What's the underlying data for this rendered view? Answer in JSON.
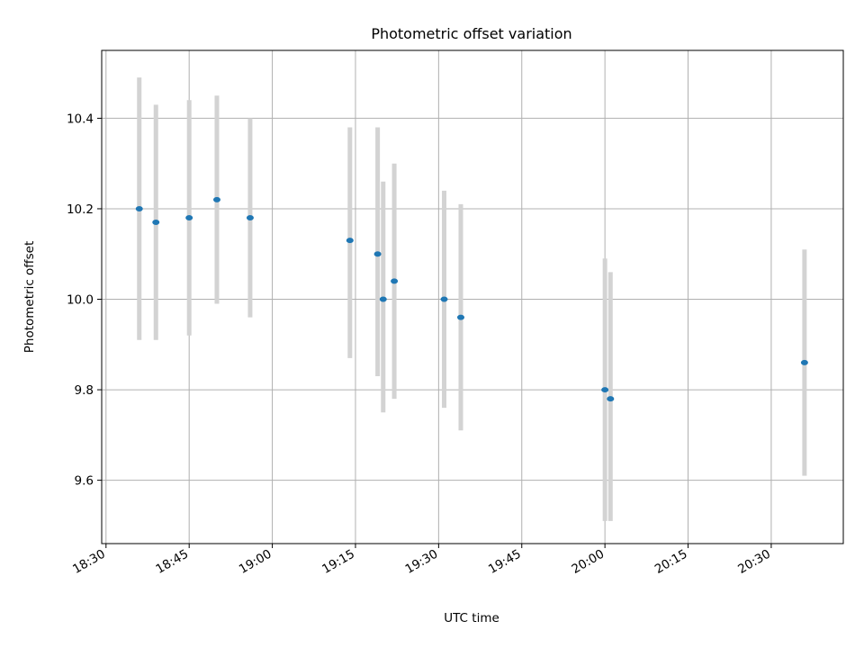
{
  "chart_data": {
    "type": "scatter",
    "title": "Photometric offset variation",
    "xlabel": "UTC time",
    "ylabel": "Photometric offset",
    "x_unit": "UTC time of day",
    "xlim": [
      "18:30",
      "20:43"
    ],
    "ylim": [
      9.46,
      10.55
    ],
    "x_ticks": [
      "18:30",
      "18:45",
      "19:00",
      "19:15",
      "19:30",
      "19:45",
      "20:00",
      "20:15",
      "20:30"
    ],
    "y_ticks": [
      "9.6",
      "9.8",
      "10.0",
      "10.2",
      "10.4"
    ],
    "grid": true,
    "colors": {
      "point": "#1f77b4",
      "errorbar": "#d3d3d3",
      "grid": "#b0b0b0"
    },
    "points": [
      {
        "time": "18:36",
        "y": 10.2,
        "err_low": 9.91,
        "err_high": 10.49
      },
      {
        "time": "18:39",
        "y": 10.17,
        "err_low": 9.91,
        "err_high": 10.43
      },
      {
        "time": "18:45",
        "y": 10.18,
        "err_low": 9.92,
        "err_high": 10.44
      },
      {
        "time": "18:50",
        "y": 10.22,
        "err_low": 9.99,
        "err_high": 10.45
      },
      {
        "time": "18:56",
        "y": 10.18,
        "err_low": 9.96,
        "err_high": 10.4
      },
      {
        "time": "19:14",
        "y": 10.13,
        "err_low": 9.87,
        "err_high": 10.38
      },
      {
        "time": "19:19",
        "y": 10.1,
        "err_low": 9.83,
        "err_high": 10.38
      },
      {
        "time": "19:20",
        "y": 10.0,
        "err_low": 9.75,
        "err_high": 10.26
      },
      {
        "time": "19:22",
        "y": 10.04,
        "err_low": 9.78,
        "err_high": 10.3
      },
      {
        "time": "19:31",
        "y": 10.0,
        "err_low": 9.76,
        "err_high": 10.24
      },
      {
        "time": "19:34",
        "y": 9.96,
        "err_low": 9.71,
        "err_high": 10.21
      },
      {
        "time": "20:00",
        "y": 9.8,
        "err_low": 9.51,
        "err_high": 10.09
      },
      {
        "time": "20:01",
        "y": 9.78,
        "err_low": 9.51,
        "err_high": 10.06
      },
      {
        "time": "20:36",
        "y": 9.86,
        "err_low": 9.61,
        "err_high": 10.11
      }
    ]
  }
}
